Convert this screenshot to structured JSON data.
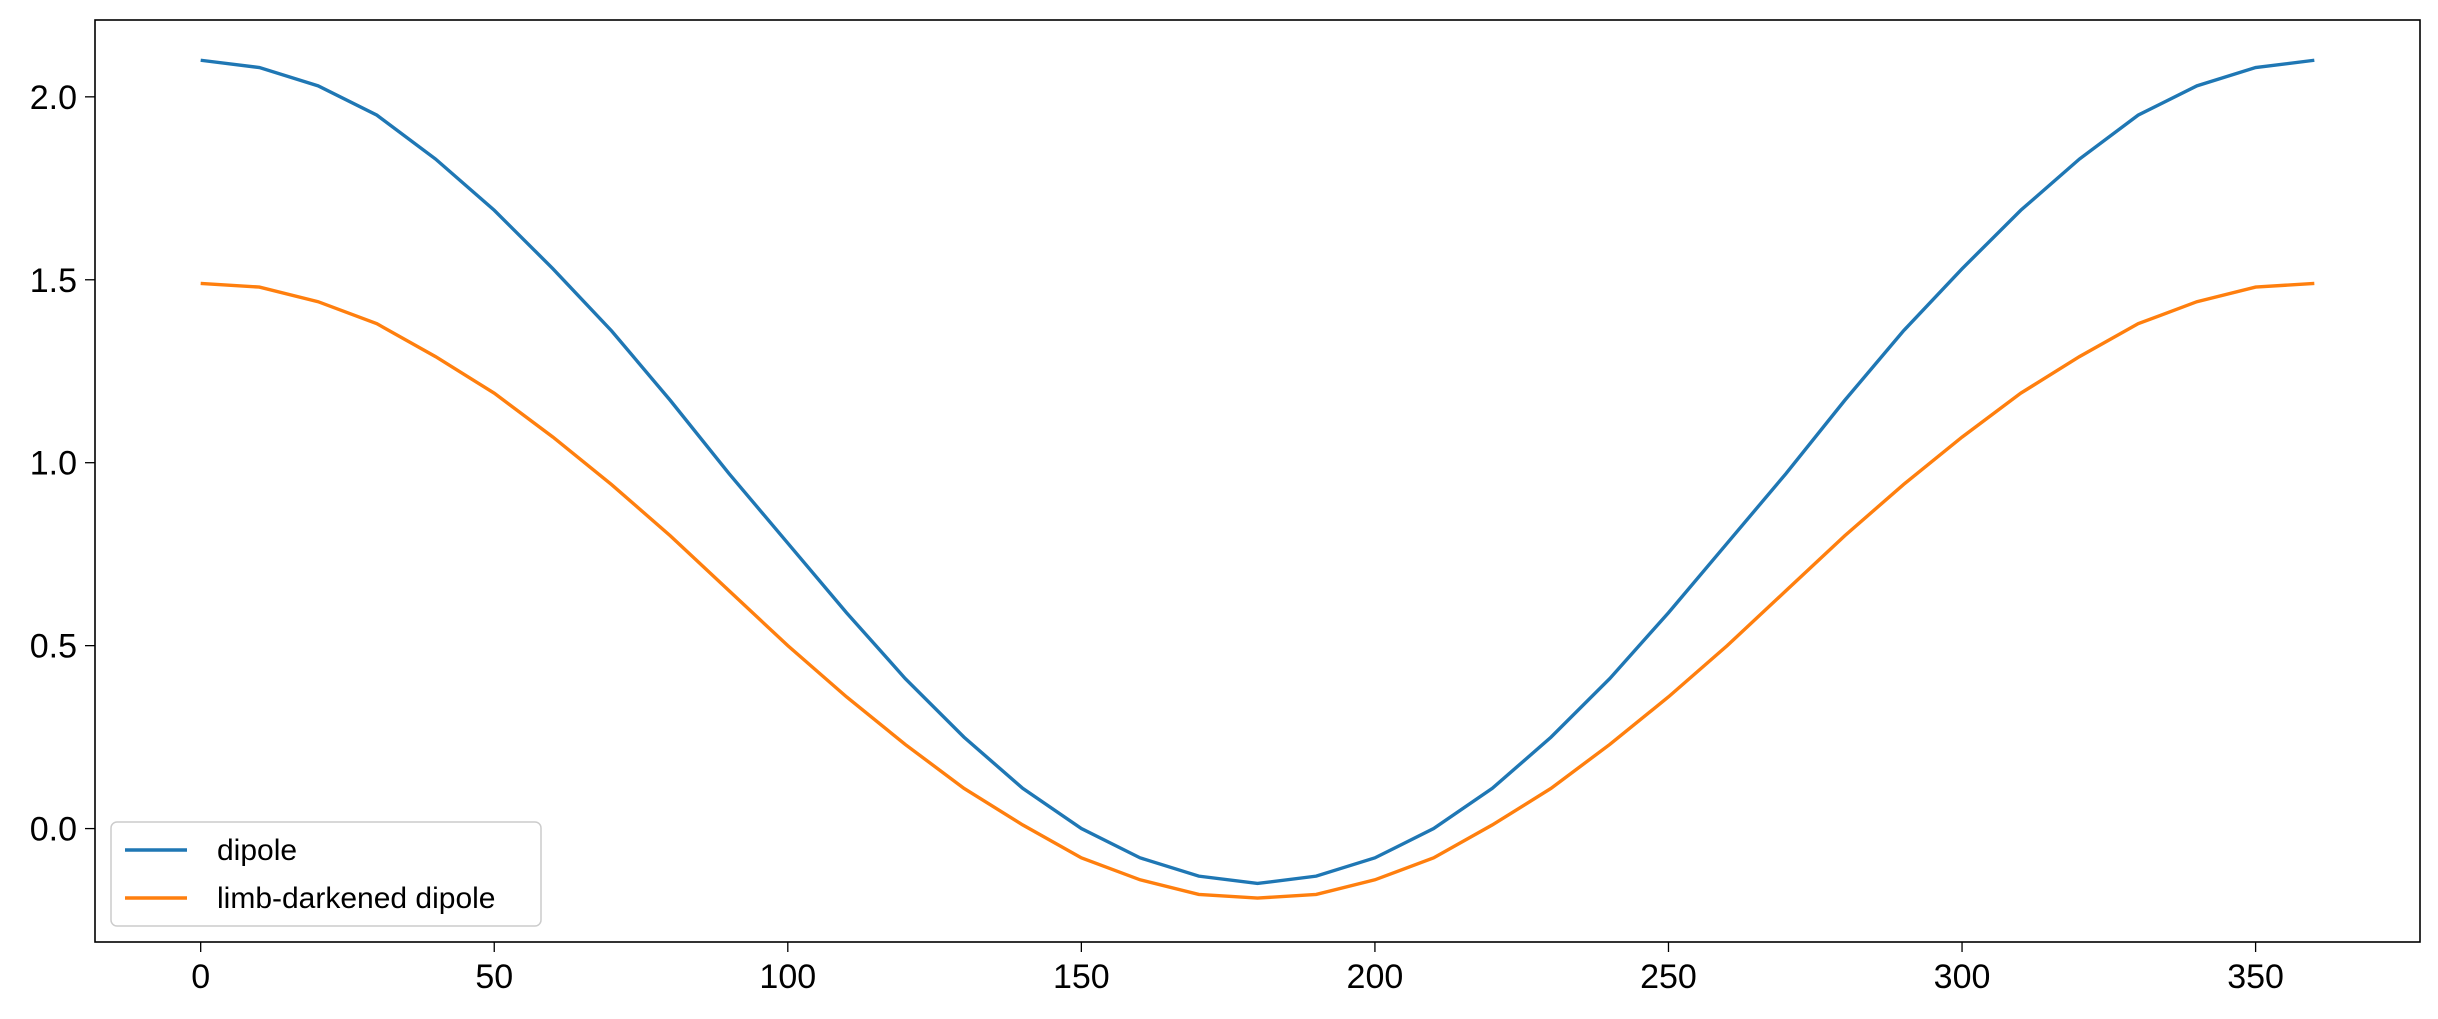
{
  "chart_data": {
    "type": "line",
    "x": [
      0,
      10,
      20,
      30,
      40,
      50,
      60,
      70,
      80,
      90,
      100,
      110,
      120,
      130,
      140,
      150,
      160,
      170,
      180,
      190,
      200,
      210,
      220,
      230,
      240,
      250,
      260,
      270,
      280,
      290,
      300,
      310,
      320,
      330,
      340,
      350,
      360
    ],
    "series": [
      {
        "name": "dipole",
        "color": "#1f77b4",
        "values": [
          2.1,
          2.08,
          2.03,
          1.95,
          1.83,
          1.69,
          1.53,
          1.36,
          1.17,
          0.97,
          0.78,
          0.59,
          0.41,
          0.25,
          0.11,
          0.0,
          -0.08,
          -0.13,
          -0.15,
          -0.13,
          -0.08,
          0.0,
          0.11,
          0.25,
          0.41,
          0.59,
          0.78,
          0.97,
          1.17,
          1.36,
          1.53,
          1.69,
          1.83,
          1.95,
          2.03,
          2.08,
          2.1
        ]
      },
      {
        "name": "limb-darkened dipole",
        "color": "#ff7f0e",
        "values": [
          1.49,
          1.48,
          1.44,
          1.38,
          1.29,
          1.19,
          1.07,
          0.94,
          0.8,
          0.65,
          0.5,
          0.36,
          0.23,
          0.11,
          0.01,
          -0.08,
          -0.14,
          -0.18,
          -0.19,
          -0.18,
          -0.14,
          -0.08,
          0.01,
          0.11,
          0.23,
          0.36,
          0.5,
          0.65,
          0.8,
          0.94,
          1.07,
          1.19,
          1.29,
          1.38,
          1.44,
          1.48,
          1.49
        ]
      }
    ],
    "xlim": [
      -18,
      378
    ],
    "xticks": [
      0,
      50,
      100,
      150,
      200,
      250,
      300,
      350
    ],
    "ylim": [
      -0.31,
      2.21
    ],
    "yticks": [
      {
        "value": 0,
        "label": "0.0"
      },
      {
        "value": 0.5,
        "label": "0.5"
      },
      {
        "value": 1,
        "label": "1.0"
      },
      {
        "value": 1.5,
        "label": "1.5"
      },
      {
        "value": 2,
        "label": "2.0"
      }
    ],
    "legend": "lower left"
  }
}
